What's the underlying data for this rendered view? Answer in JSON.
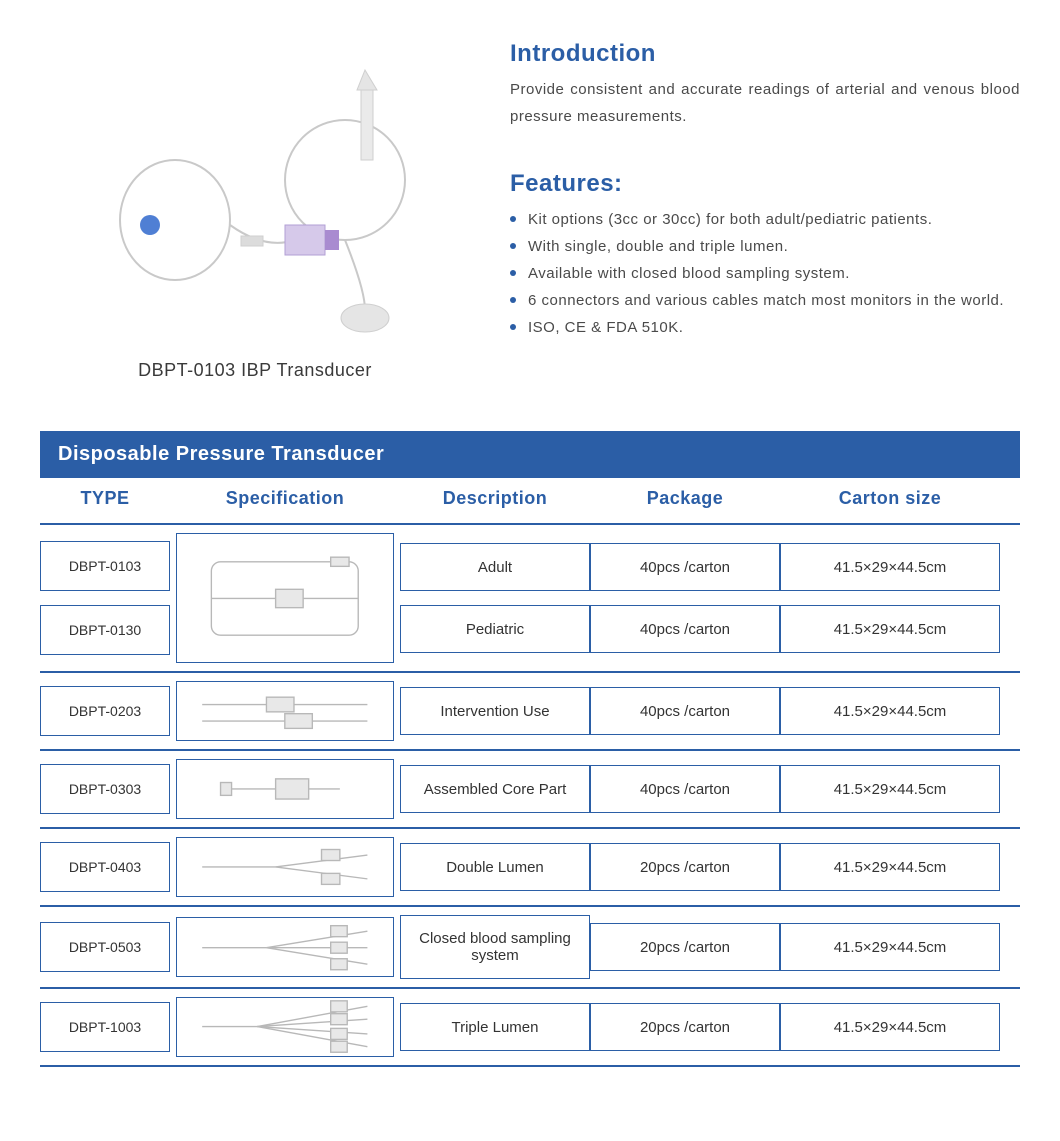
{
  "colors": {
    "primary_blue": "#2b5ea6",
    "header_bar_bg": "#2b5ea6",
    "border_blue": "#2b5ea6",
    "text_gray": "#4a4a4a",
    "bullet": "#2b5ea6",
    "diagram_stroke": "#b8b8b8"
  },
  "product": {
    "caption": "DBPT-0103 IBP Transducer"
  },
  "intro": {
    "title": "Introduction",
    "text": "Provide consistent and accurate readings of arterial and venous blood pressure measurements."
  },
  "features": {
    "title": "Features:",
    "items": [
      "Kit options (3cc or 30cc) for both adult/pediatric patients.",
      "With single, double and triple lumen.",
      "Available with closed blood sampling system.",
      "6 connectors and various cables match most monitors in the world.",
      "ISO, CE & FDA 510K."
    ]
  },
  "table": {
    "title": "Disposable Pressure Transducer",
    "columns": {
      "type": "TYPE",
      "spec": "Specification",
      "desc": "Description",
      "pkg": "Package",
      "carton": "Carton  size"
    },
    "groups": [
      {
        "spec_tall": true,
        "rows": [
          {
            "type": "DBPT-0103",
            "desc": "Adult",
            "pkg": "40pcs /carton",
            "carton": "41.5×29×44.5cm"
          },
          {
            "type": "DBPT-0130",
            "desc": "Pediatric",
            "pkg": "40pcs /carton",
            "carton": "41.5×29×44.5cm"
          }
        ]
      },
      {
        "spec_tall": false,
        "rows": [
          {
            "type": "DBPT-0203",
            "desc": "Intervention Use",
            "pkg": "40pcs /carton",
            "carton": "41.5×29×44.5cm"
          }
        ]
      },
      {
        "spec_tall": false,
        "rows": [
          {
            "type": "DBPT-0303",
            "desc": "Assembled Core Part",
            "pkg": "40pcs /carton",
            "carton": "41.5×29×44.5cm"
          }
        ]
      },
      {
        "spec_tall": false,
        "rows": [
          {
            "type": "DBPT-0403",
            "desc": "Double Lumen",
            "pkg": "20pcs /carton",
            "carton": "41.5×29×44.5cm"
          }
        ]
      },
      {
        "spec_tall": false,
        "rows": [
          {
            "type": "DBPT-0503",
            "desc": "Closed blood sampling system",
            "pkg": "20pcs /carton",
            "carton": "41.5×29×44.5cm"
          }
        ]
      },
      {
        "spec_tall": false,
        "rows": [
          {
            "type": "DBPT-1003",
            "desc": "Triple Lumen",
            "pkg": "20pcs /carton",
            "carton": "41.5×29×44.5cm"
          }
        ]
      }
    ]
  }
}
